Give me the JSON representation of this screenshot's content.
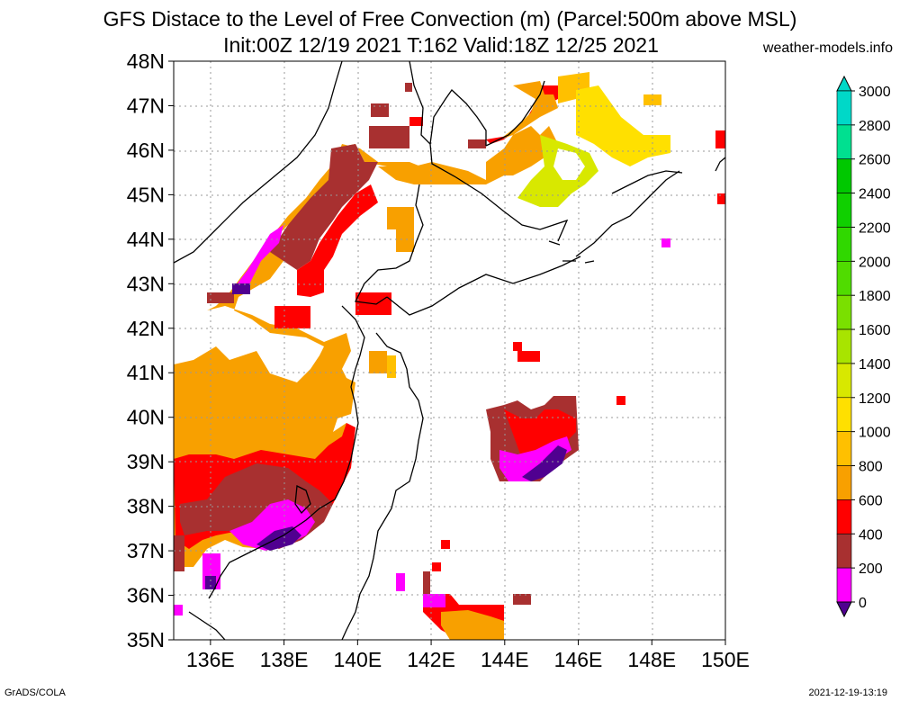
{
  "title_line1": "GFS Distace to the Level of Free Convection (m) (Parcel:500m above MSL)",
  "title_line2": "Init:00Z 12/19 2021 T:162 Valid:18Z 12/25 2021",
  "site": "weather-models.info",
  "footer_left": "GrADS/COLA",
  "footer_right": "2021-12-19-13:19",
  "lat_labels": [
    "48N",
    "47N",
    "46N",
    "45N",
    "44N",
    "43N",
    "42N",
    "41N",
    "40N",
    "39N",
    "38N",
    "37N",
    "36N",
    "35N"
  ],
  "lon_labels": [
    "136E",
    "138E",
    "140E",
    "142E",
    "144E",
    "146E",
    "148E",
    "150E"
  ],
  "colorbar": {
    "labels": [
      "3000",
      "2800",
      "2600",
      "2400",
      "2200",
      "2000",
      "1800",
      "1600",
      "1400",
      "1200",
      "1000",
      "800",
      "600",
      "400",
      "200",
      "0"
    ],
    "colors": [
      "#00d8c8",
      "#00e090",
      "#00c800",
      "#10d000",
      "#30d800",
      "#50dc00",
      "#7ae000",
      "#a8e400",
      "#d8e800",
      "#ffe000",
      "#ffc000",
      "#f8a000",
      "#ff0000",
      "#a83030",
      "#ff00ff",
      "#500090"
    ]
  }
}
